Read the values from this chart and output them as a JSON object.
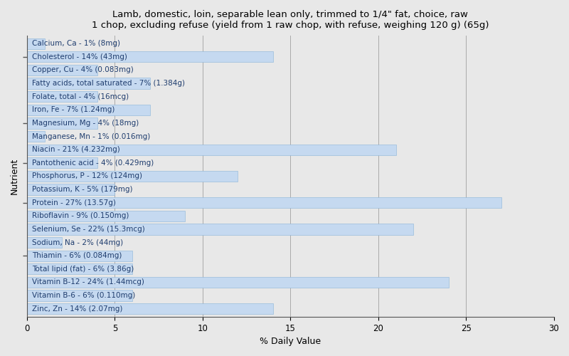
{
  "title_line1": "Lamb, domestic, loin, separable lean only, trimmed to 1/4\" fat, choice, raw",
  "title_line2": "1 chop, excluding refuse (yield from 1 raw chop, with refuse, weighing 120 g) (65g)",
  "xlabel": "% Daily Value",
  "ylabel": "Nutrient",
  "xlim": [
    0,
    30
  ],
  "xticks": [
    0,
    5,
    10,
    15,
    20,
    25,
    30
  ],
  "bar_color": "#c5d9f0",
  "bar_edge_color": "#8ab4d8",
  "background_color": "#e8e8e8",
  "text_color": "#1f3d6e",
  "nutrients": [
    {
      "name": "Calcium, Ca - 1% (8mg)",
      "value": 1
    },
    {
      "name": "Cholesterol - 14% (43mg)",
      "value": 14
    },
    {
      "name": "Copper, Cu - 4% (0.083mg)",
      "value": 4
    },
    {
      "name": "Fatty acids, total saturated - 7% (1.384g)",
      "value": 7
    },
    {
      "name": "Folate, total - 4% (16mcg)",
      "value": 4
    },
    {
      "name": "Iron, Fe - 7% (1.24mg)",
      "value": 7
    },
    {
      "name": "Magnesium, Mg - 4% (18mg)",
      "value": 4
    },
    {
      "name": "Manganese, Mn - 1% (0.016mg)",
      "value": 1
    },
    {
      "name": "Niacin - 21% (4.232mg)",
      "value": 21
    },
    {
      "name": "Pantothenic acid - 4% (0.429mg)",
      "value": 4
    },
    {
      "name": "Phosphorus, P - 12% (124mg)",
      "value": 12
    },
    {
      "name": "Potassium, K - 5% (179mg)",
      "value": 5
    },
    {
      "name": "Protein - 27% (13.57g)",
      "value": 27
    },
    {
      "name": "Riboflavin - 9% (0.150mg)",
      "value": 9
    },
    {
      "name": "Selenium, Se - 22% (15.3mcg)",
      "value": 22
    },
    {
      "name": "Sodium, Na - 2% (44mg)",
      "value": 2
    },
    {
      "name": "Thiamin - 6% (0.084mg)",
      "value": 6
    },
    {
      "name": "Total lipid (fat) - 6% (3.86g)",
      "value": 6
    },
    {
      "name": "Vitamin B-12 - 24% (1.44mcg)",
      "value": 24
    },
    {
      "name": "Vitamin B-6 - 6% (0.110mg)",
      "value": 6
    },
    {
      "name": "Zinc, Zn - 14% (2.07mg)",
      "value": 14
    }
  ],
  "grid_color": "#aaaaaa",
  "title_fontsize": 9.5,
  "label_fontsize": 7.5,
  "tick_fontsize": 8.5,
  "axis_label_fontsize": 9,
  "ytick_positions_from_top": [
    1,
    6,
    9,
    12,
    16
  ],
  "bar_height": 0.82
}
